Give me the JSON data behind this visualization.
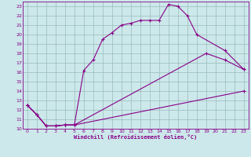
{
  "xlabel": "Windchill (Refroidissement éolien,°C)",
  "bg_color": "#cce8ea",
  "line_color": "#880088",
  "grid_color": "#99bbbb",
  "xlim": [
    -0.5,
    23.5
  ],
  "ylim": [
    10,
    23.5
  ],
  "xticks": [
    0,
    1,
    2,
    3,
    4,
    5,
    6,
    7,
    8,
    9,
    10,
    11,
    12,
    13,
    14,
    15,
    16,
    17,
    18,
    19,
    20,
    21,
    22,
    23
  ],
  "yticks": [
    10,
    11,
    12,
    13,
    14,
    15,
    16,
    17,
    18,
    19,
    20,
    21,
    22,
    23
  ],
  "line1_x": [
    0,
    1,
    2,
    3,
    4,
    5,
    6,
    7,
    8,
    9,
    10,
    11,
    12,
    13,
    14,
    15,
    16,
    17,
    18,
    21,
    23
  ],
  "line1_y": [
    12.5,
    11.5,
    10.3,
    10.3,
    10.4,
    10.4,
    16.2,
    17.3,
    19.5,
    20.2,
    21.0,
    21.2,
    21.5,
    21.5,
    21.5,
    23.2,
    23.0,
    22.0,
    20.0,
    18.3,
    16.3
  ],
  "line2_x": [
    0,
    1,
    2,
    3,
    4,
    5,
    23
  ],
  "line2_y": [
    12.5,
    11.5,
    10.3,
    10.3,
    10.4,
    10.4,
    14.0
  ],
  "line3_x": [
    0,
    1,
    2,
    3,
    4,
    5,
    19,
    21,
    23
  ],
  "line3_y": [
    12.5,
    11.5,
    10.3,
    10.3,
    10.4,
    10.4,
    18.0,
    17.3,
    16.3
  ]
}
